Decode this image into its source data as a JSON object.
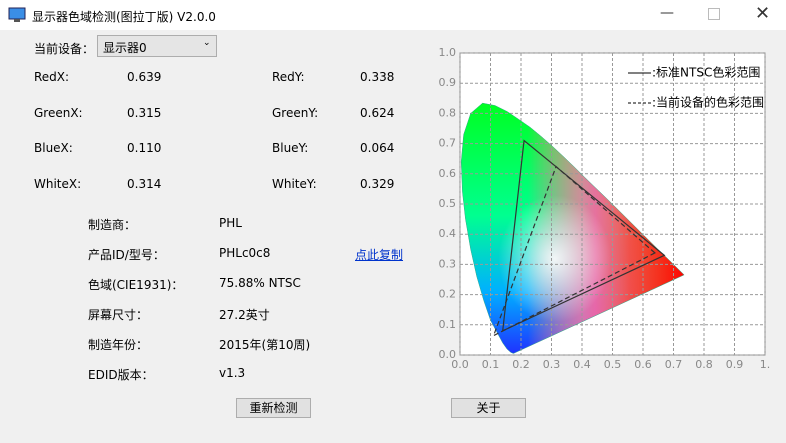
{
  "window": {
    "title": "显示器色域检测(图拉丁版) V2.0.0"
  },
  "device": {
    "label": "当前设备：",
    "selected": "显示器0"
  },
  "coords": [
    [
      {
        "label": "RedX:",
        "value": "0.639"
      },
      {
        "label": "RedY:",
        "value": "0.338"
      }
    ],
    [
      {
        "label": "GreenX:",
        "value": "0.315"
      },
      {
        "label": "GreenY:",
        "value": "0.624"
      }
    ],
    [
      {
        "label": "BlueX:",
        "value": "0.110"
      },
      {
        "label": "BlueY:",
        "value": "0.064"
      }
    ],
    [
      {
        "label": "WhiteX:",
        "value": "0.314"
      },
      {
        "label": "WhiteY:",
        "value": "0.329"
      }
    ]
  ],
  "info": [
    {
      "label": "制造商：",
      "value": "PHL"
    },
    {
      "label": "产品ID/型号：",
      "value": "PHLc0c8",
      "action": "点此复制"
    },
    {
      "label": "色域(CIE1931)：",
      "value": "75.88% NTSC"
    },
    {
      "label": "屏幕尺寸：",
      "value": "27.2英寸"
    },
    {
      "label": "制造年份：",
      "value": "2015年(第10周)"
    },
    {
      "label": "EDID版本：",
      "value": "v1.3"
    }
  ],
  "buttons": [
    "重新检测",
    "关于"
  ],
  "chart": {
    "xlim": [
      0,
      1
    ],
    "ylim": [
      0,
      1
    ],
    "grid": true,
    "xticks": [
      {
        "value": 0,
        "label": "0.0"
      },
      {
        "value": 0.1,
        "label": "0.1"
      },
      {
        "value": 0.2,
        "label": "0.2"
      },
      {
        "value": 0.3,
        "label": "0.3"
      },
      {
        "value": 0.4,
        "label": "0.4"
      },
      {
        "value": 0.5,
        "label": "0.5"
      },
      {
        "value": 0.6,
        "label": "0.6"
      },
      {
        "value": 0.7,
        "label": "0.7"
      },
      {
        "value": 0.8,
        "label": "0.8"
      },
      {
        "value": 0.9,
        "label": "0.9"
      },
      {
        "value": 1,
        "label": "1."
      }
    ],
    "yticks": [
      {
        "value": 0,
        "label": "0.0"
      },
      {
        "value": 0.1,
        "label": "0.1"
      },
      {
        "value": 0.2,
        "label": "0.2"
      },
      {
        "value": 0.3,
        "label": "0.3"
      },
      {
        "value": 0.4,
        "label": "0.4"
      },
      {
        "value": 0.5,
        "label": "0.5"
      },
      {
        "value": 0.6,
        "label": "0.6"
      },
      {
        "value": 0.7,
        "label": "0.7"
      },
      {
        "value": 0.8,
        "label": "0.8"
      },
      {
        "value": 0.9,
        "label": "0.9"
      },
      {
        "value": 1,
        "label": "1.0"
      }
    ],
    "series": [
      {
        "name": ":标准NTSC色彩范围",
        "style": "solid",
        "x": [
          0.67,
          0.21,
          0.14
        ],
        "y": [
          0.33,
          0.71,
          0.08
        ]
      },
      {
        "name": ":当前设备的色彩范围",
        "style": "dashed",
        "x": [
          0.639,
          0.315,
          0.11
        ],
        "y": [
          0.338,
          0.624,
          0.064
        ]
      }
    ]
  }
}
